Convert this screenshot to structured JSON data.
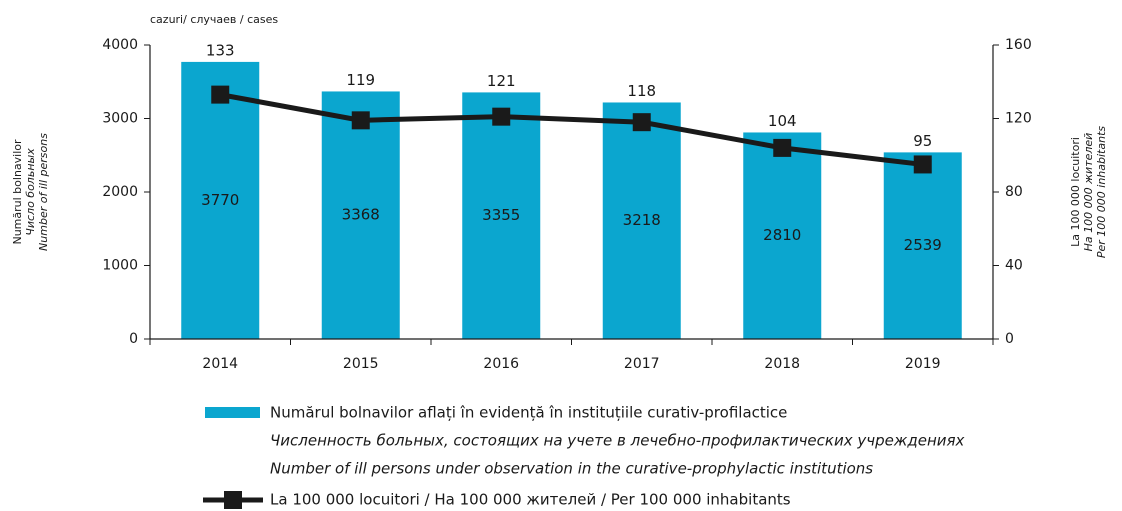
{
  "chart_data": {
    "type": "bar-line",
    "unit_label": "cazuri/ случаев / cases",
    "ylabel": [
      "Numărul bolnavilor",
      "Число больных",
      "Number of ill persons"
    ],
    "y2label": [
      "La 100 000 locuitori",
      "На 100 000 жителей",
      "Per 100 000 inhabitants"
    ],
    "categories": [
      "2014",
      "2015",
      "2016",
      "2017",
      "2018",
      "2019"
    ],
    "series": [
      {
        "name": [
          "Numărul bolnavilor aflați în evidență în instituțiile curativ-profilactice",
          "Численность больных, состоящих на учете в лечебно-профилактических учреждениях",
          "Number of ill persons under observation in the curative-prophylactic institutions"
        ],
        "type": "bar",
        "color": "#0ba6cf",
        "values": [
          3770,
          3368,
          3355,
          3218,
          2810,
          2539
        ]
      },
      {
        "name": "La 100 000 locuitori / На 100 000 жителей / Per 100 000 inhabitants",
        "type": "line",
        "axis": "y2",
        "color": "#1a1a1a",
        "values": [
          133,
          119,
          121,
          118,
          104,
          95
        ]
      }
    ],
    "ylim": [
      0,
      4000
    ],
    "yticks": [
      0,
      1000,
      2000,
      3000,
      4000
    ],
    "y2lim": [
      0,
      160
    ],
    "y2ticks": [
      0,
      40,
      80,
      120,
      160
    ]
  }
}
